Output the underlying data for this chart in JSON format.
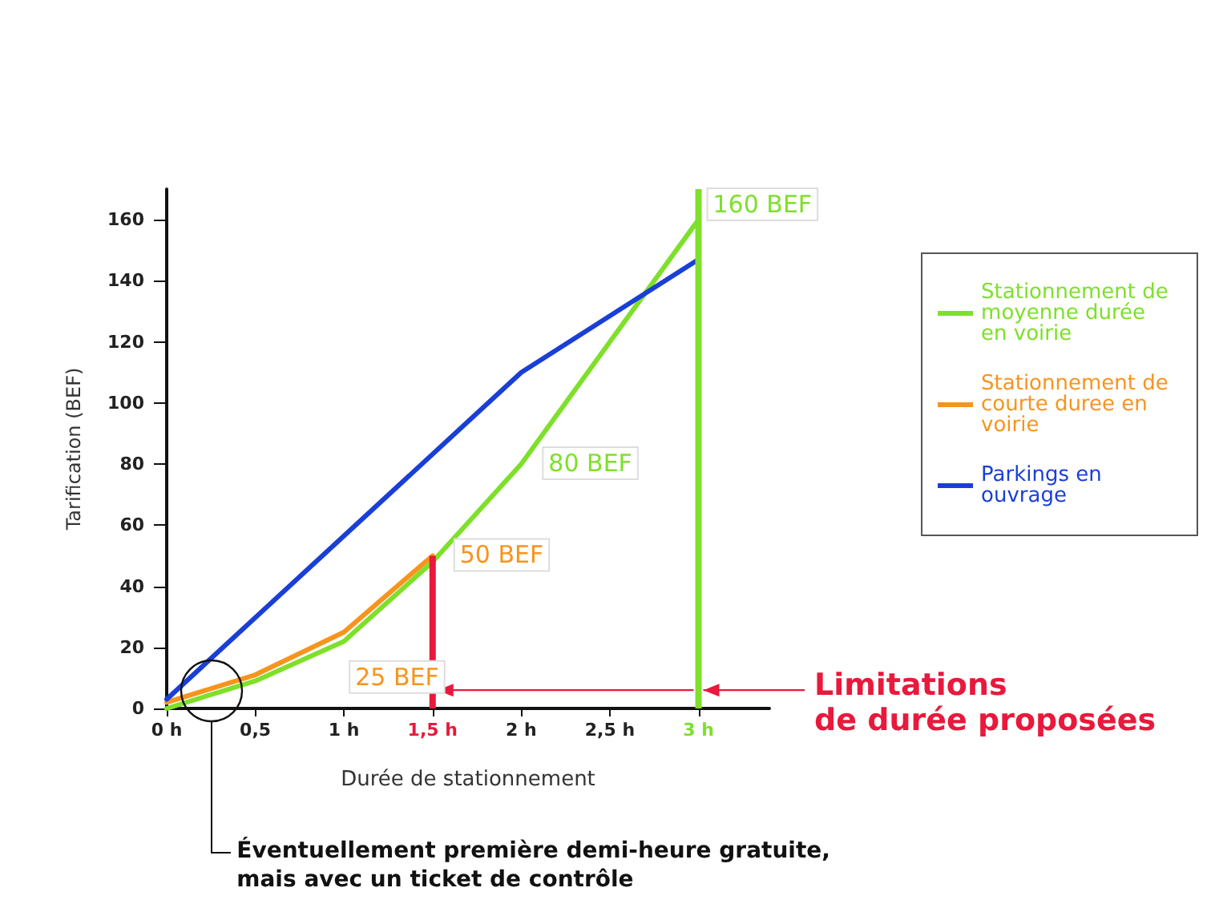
{
  "chart_data": {
    "type": "line",
    "xlabel": "Durée de stationnement",
    "ylabel": "Tarification (BEF)",
    "xlim": [
      0,
      3.4
    ],
    "ylim": [
      0,
      170
    ],
    "xticks": [
      {
        "value": 0,
        "label": "0 h"
      },
      {
        "value": 0.5,
        "label": "0,5"
      },
      {
        "value": 1,
        "label": "1 h"
      },
      {
        "value": 1.5,
        "label": "1,5 h"
      },
      {
        "value": 2,
        "label": "2 h"
      },
      {
        "value": 2.5,
        "label": "2,5 h"
      },
      {
        "value": 3,
        "label": "3 h"
      }
    ],
    "yticks": [
      0,
      20,
      40,
      60,
      80,
      100,
      120,
      140,
      160
    ],
    "series": [
      {
        "name": "Stationnement de moyenne durée en voirie",
        "color": "#7ee02a",
        "x": [
          0,
          0.5,
          1,
          1.5,
          2,
          3
        ],
        "values": [
          0,
          9,
          22,
          48,
          80,
          160
        ]
      },
      {
        "name": "Stationnement de courte duree en voirie",
        "color": "#f7941d",
        "x": [
          0,
          0.5,
          1,
          1.5
        ],
        "values": [
          2,
          11,
          25,
          50
        ]
      },
      {
        "name": "Parkings en ouvrage",
        "color": "#1a3fd6",
        "x": [
          0,
          2,
          3
        ],
        "values": [
          3,
          110,
          147
        ]
      }
    ],
    "ref_lines": [
      {
        "axis": "x",
        "value": 1.5,
        "color": "#e8193c"
      },
      {
        "axis": "x",
        "value": 3,
        "color": "#7ee02a"
      }
    ],
    "annotations": [
      {
        "text": "Limitations\nde durée proposées",
        "x": 3,
        "y": 6
      },
      "Éventuellement première demi-heure gratuite,\nmais avec un ticket de contrôle",
      {
        "text": "25 BEF",
        "x": 1,
        "y": 25
      },
      {
        "text": "50 BEF",
        "x": 1.5,
        "y": 50
      },
      {
        "text": "80 BEF",
        "x": 2,
        "y": 80
      },
      {
        "text": "160 BEF",
        "x": 3,
        "y": 160
      }
    ],
    "legend": "right",
    "grid": false
  }
}
